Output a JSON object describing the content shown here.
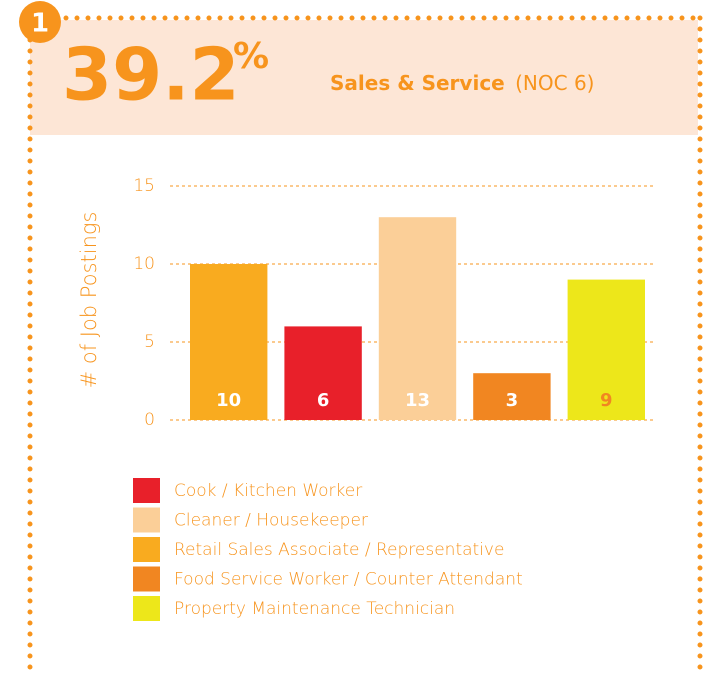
{
  "header": {
    "badge": "1",
    "stat": 39.2,
    "stat_unit": "%",
    "title": "Sales & Service",
    "title_note": "(NOC 6)"
  },
  "chart_data": {
    "type": "bar",
    "y_label": "# of Job Postings",
    "values": [
      10,
      6,
      13,
      3,
      9
    ],
    "colors": [
      "#f9ab1f",
      "#e8202a",
      "#fbcf98",
      "#f18621",
      "#ede71a"
    ],
    "value_label_colors": [
      "#ffffff",
      "#ffffff",
      "#ffffff",
      "#ffffff",
      "#f18621"
    ],
    "ylim": [
      0,
      15
    ],
    "yticks": [
      0,
      5,
      10,
      15
    ],
    "grid": true,
    "legend": [
      {
        "name": "Cook / Kitchen Worker",
        "color": "#e8202a"
      },
      {
        "name": "Cleaner / Housekeeper",
        "color": "#fbcf98"
      },
      {
        "name": "Retail Sales Associate / Representative",
        "color": "#f9ab1f"
      },
      {
        "name": "Food Service Worker / Counter Attendant",
        "color": "#f18621"
      },
      {
        "name": "Property Maintenance Technician",
        "color": "#ede71a"
      }
    ]
  }
}
